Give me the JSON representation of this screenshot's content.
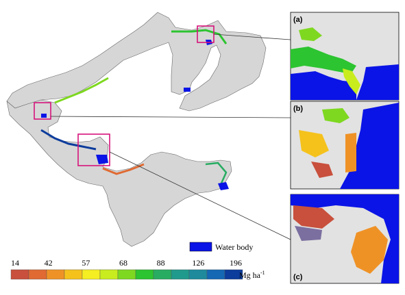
{
  "insets": [
    {
      "id": "a",
      "label": "(a)"
    },
    {
      "id": "b",
      "label": "(b)"
    },
    {
      "id": "c",
      "label": "(c)"
    }
  ],
  "legend": {
    "water_label": "Water body",
    "water_color": "#0a14e6",
    "unit": "Mg ha",
    "unit_sup": "-1",
    "ticks": [
      "14",
      "42",
      "57",
      "68",
      "88",
      "126",
      "196"
    ],
    "colors": [
      "#c8503c",
      "#e06a32",
      "#ef9226",
      "#f5c21c",
      "#f4ee22",
      "#c8ec1e",
      "#7ed820",
      "#2cc430",
      "#28ac62",
      "#209a8c",
      "#1e8a9c",
      "#1468b4",
      "#0c3c9c"
    ]
  },
  "colors": {
    "land": "#d6d6d6",
    "coast": "#666666",
    "highlight_box": "#d6127a",
    "leader_line": "#333333"
  }
}
